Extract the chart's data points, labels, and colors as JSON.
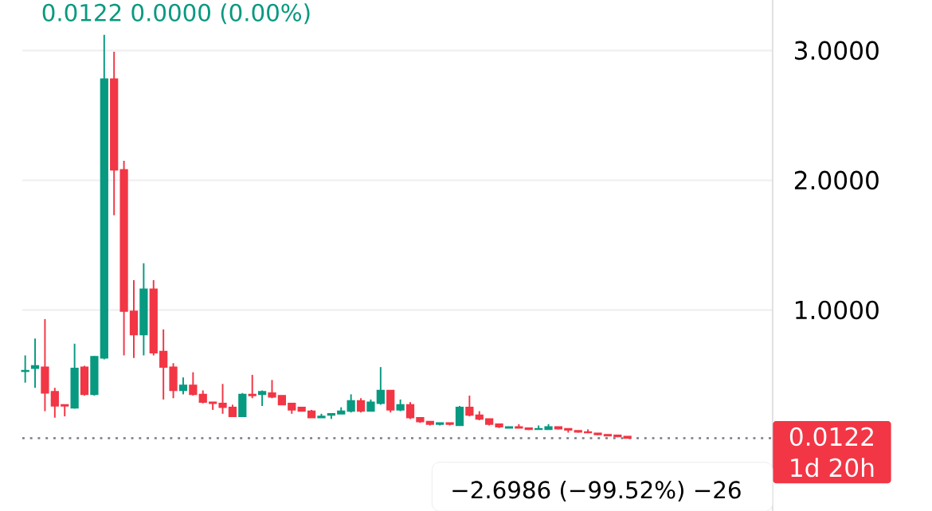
{
  "chart_data": {
    "type": "candlestick",
    "annotations": [
      "0.0122  0.0000 (0.00%)",
      "1d 20h",
      "−2.6986 (−99.52%) −26"
    ],
    "categories": [
      null,
      null,
      null,
      null,
      null,
      null,
      null,
      null,
      null,
      null,
      null,
      null,
      null,
      null,
      null,
      null,
      null,
      null,
      null,
      null,
      null,
      null,
      null,
      null,
      null,
      null,
      null,
      null,
      null,
      null,
      null,
      null,
      null,
      null,
      null,
      null,
      null,
      null,
      null,
      null,
      null,
      null,
      null,
      null,
      null,
      null,
      null,
      null,
      null,
      null,
      null,
      null,
      null,
      null,
      null,
      null,
      null,
      null,
      null,
      null,
      null,
      null,
      null,
      null,
      null,
      null,
      null,
      null,
      null,
      null,
      null,
      null,
      null,
      null,
      null,
      null
    ],
    "ohlc": [
      [
        0.527,
        0.65,
        0.44,
        0.533
      ],
      [
        0.55,
        0.78,
        0.4,
        0.57
      ],
      [
        0.56,
        0.93,
        0.22,
        0.36
      ],
      [
        0.37,
        0.4,
        0.17,
        0.26
      ],
      [
        0.27,
        0.27,
        0.18,
        0.26
      ],
      [
        0.245,
        0.74,
        0.24,
        0.55
      ],
      [
        0.56,
        0.57,
        0.34,
        0.35
      ],
      [
        0.35,
        0.645,
        0.34,
        0.64
      ],
      [
        0.63,
        3.12,
        0.62,
        2.78
      ],
      [
        2.78,
        2.99,
        1.73,
        2.08
      ],
      [
        2.08,
        2.15,
        0.65,
        0.99
      ],
      [
        0.99,
        1.23,
        0.63,
        0.81
      ],
      [
        0.81,
        1.36,
        0.65,
        1.16
      ],
      [
        1.16,
        1.23,
        0.65,
        0.67
      ],
      [
        0.68,
        0.85,
        0.31,
        0.56
      ],
      [
        0.56,
        0.59,
        0.32,
        0.38
      ],
      [
        0.38,
        0.48,
        0.35,
        0.42
      ],
      [
        0.42,
        0.52,
        0.34,
        0.35
      ],
      [
        0.35,
        0.38,
        0.28,
        0.29
      ],
      [
        0.29,
        0.29,
        0.23,
        0.28
      ],
      [
        0.28,
        0.43,
        0.2,
        0.25
      ],
      [
        0.25,
        0.27,
        0.18,
        0.18
      ],
      [
        0.18,
        0.36,
        0.18,
        0.35
      ],
      [
        0.35,
        0.5,
        0.32,
        0.34
      ],
      [
        0.35,
        0.38,
        0.26,
        0.37
      ],
      [
        0.36,
        0.46,
        0.32,
        0.33
      ],
      [
        0.34,
        0.34,
        0.27,
        0.27
      ],
      [
        0.28,
        0.28,
        0.2,
        0.23
      ],
      [
        0.25,
        0.25,
        0.22,
        0.22
      ],
      [
        0.22,
        0.23,
        0.17,
        0.17
      ],
      [
        0.17,
        0.2,
        0.17,
        0.18
      ],
      [
        0.19,
        0.2,
        0.16,
        0.2
      ],
      [
        0.2,
        0.25,
        0.2,
        0.22
      ],
      [
        0.22,
        0.35,
        0.21,
        0.3
      ],
      [
        0.3,
        0.32,
        0.21,
        0.22
      ],
      [
        0.22,
        0.31,
        0.22,
        0.29
      ],
      [
        0.28,
        0.56,
        0.27,
        0.38
      ],
      [
        0.38,
        0.38,
        0.21,
        0.23
      ],
      [
        0.23,
        0.31,
        0.22,
        0.27
      ],
      [
        0.27,
        0.29,
        0.16,
        0.17
      ],
      [
        0.17,
        0.17,
        0.13,
        0.14
      ],
      [
        0.14,
        0.14,
        0.11,
        0.12
      ],
      [
        0.12,
        0.13,
        0.11,
        0.13
      ],
      [
        0.13,
        0.13,
        0.11,
        0.12
      ],
      [
        0.11,
        0.26,
        0.11,
        0.25
      ],
      [
        0.25,
        0.34,
        0.18,
        0.19
      ],
      [
        0.19,
        0.22,
        0.15,
        0.16
      ],
      [
        0.16,
        0.16,
        0.11,
        0.12
      ],
      [
        0.12,
        0.12,
        0.09,
        0.1
      ],
      [
        0.09,
        0.1,
        0.09,
        0.1
      ],
      [
        0.1,
        0.12,
        0.09,
        0.09
      ],
      [
        0.09,
        0.09,
        0.075,
        0.08
      ],
      [
        0.08,
        0.11,
        0.08,
        0.085
      ],
      [
        0.08,
        0.12,
        0.08,
        0.1
      ],
      [
        0.1,
        0.1,
        0.08,
        0.085
      ],
      [
        0.085,
        0.085,
        0.055,
        0.075
      ],
      [
        0.07,
        0.07,
        0.055,
        0.06
      ],
      [
        0.06,
        0.08,
        0.05,
        0.055
      ],
      [
        0.05,
        0.05,
        0.035,
        0.04
      ],
      [
        0.04,
        0.04,
        0.03,
        0.03
      ],
      [
        0.035,
        0.04,
        0.02,
        0.025
      ],
      [
        0.025,
        0.025,
        0.0122,
        0.0122
      ],
      null,
      null,
      null,
      null,
      null,
      null,
      null,
      null,
      null,
      null,
      null,
      null,
      null,
      null
    ],
    "ylim": [
      -0.551,
      3.389
    ],
    "yticks": [
      {
        "value": 1,
        "label": "1.0000"
      },
      {
        "value": 2,
        "label": "2.0000"
      },
      {
        "value": 3,
        "label": "3.0000"
      }
    ],
    "tick_labels": "y",
    "grid": "y",
    "ref_lines": [
      {
        "axis": "y",
        "value": 0.0122,
        "label": "0.0122",
        "color": "#787b86",
        "line_style": "dotted"
      }
    ]
  }
}
